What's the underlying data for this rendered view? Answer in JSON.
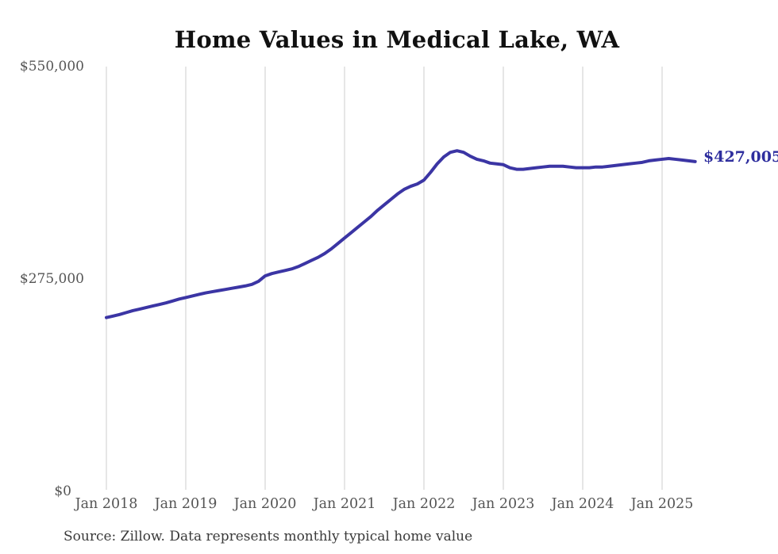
{
  "chart": {
    "title": "Home Values in Medical Lake, WA",
    "source_note": "Source: Zillow. Data represents monthly typical home value",
    "end_label": "$427,005"
  },
  "colors": {
    "line": "#3b35a4",
    "end_label": "#2e2e9e",
    "grid": "#cccccc",
    "tick_text": "#555555",
    "title_text": "#111111",
    "source_text": "#3a3a3a",
    "background": "#ffffff"
  },
  "chart_data": {
    "type": "line",
    "title": "Home Values in Medical Lake, WA",
    "series_name": "Monthly typical home value",
    "x_interval": "monthly",
    "x_start": "Jan 2018",
    "x_end": "Jun 2025",
    "x_tick_labels": [
      "Jan 2018",
      "Jan 2019",
      "Jan 2020",
      "Jan 2021",
      "Jan 2022",
      "Jan 2023",
      "Jan 2024",
      "Jan 2025"
    ],
    "y_tick_labels": [
      "$550,000",
      "$275,000",
      "$0"
    ],
    "y_tick_values": [
      550000,
      275000,
      0
    ],
    "ylim": [
      0,
      550000
    ],
    "grid": "vertical-only",
    "legend": "none",
    "end_label": "$427,005",
    "end_value": 427005,
    "values": [
      225000,
      227000,
      229000,
      231500,
      234000,
      236000,
      238000,
      240000,
      242000,
      244000,
      246500,
      249000,
      251000,
      253000,
      255000,
      257000,
      258500,
      260000,
      261500,
      263000,
      264500,
      266000,
      268000,
      272000,
      279000,
      282000,
      284000,
      286000,
      288000,
      291000,
      295000,
      299000,
      303000,
      308000,
      314000,
      321000,
      328000,
      335000,
      342000,
      349000,
      356000,
      364000,
      371000,
      378000,
      385000,
      391000,
      395000,
      398000,
      403000,
      413000,
      424000,
      433000,
      439000,
      441000,
      439000,
      434000,
      430000,
      428000,
      425000,
      424000,
      423000,
      419000,
      417000,
      417000,
      418000,
      419000,
      420000,
      421000,
      421000,
      421000,
      420000,
      419000,
      419000,
      419000,
      420000,
      420000,
      421000,
      422000,
      423000,
      424000,
      425000,
      426000,
      428000,
      429000,
      430000,
      431000,
      430000,
      429000,
      428000,
      427005
    ]
  }
}
